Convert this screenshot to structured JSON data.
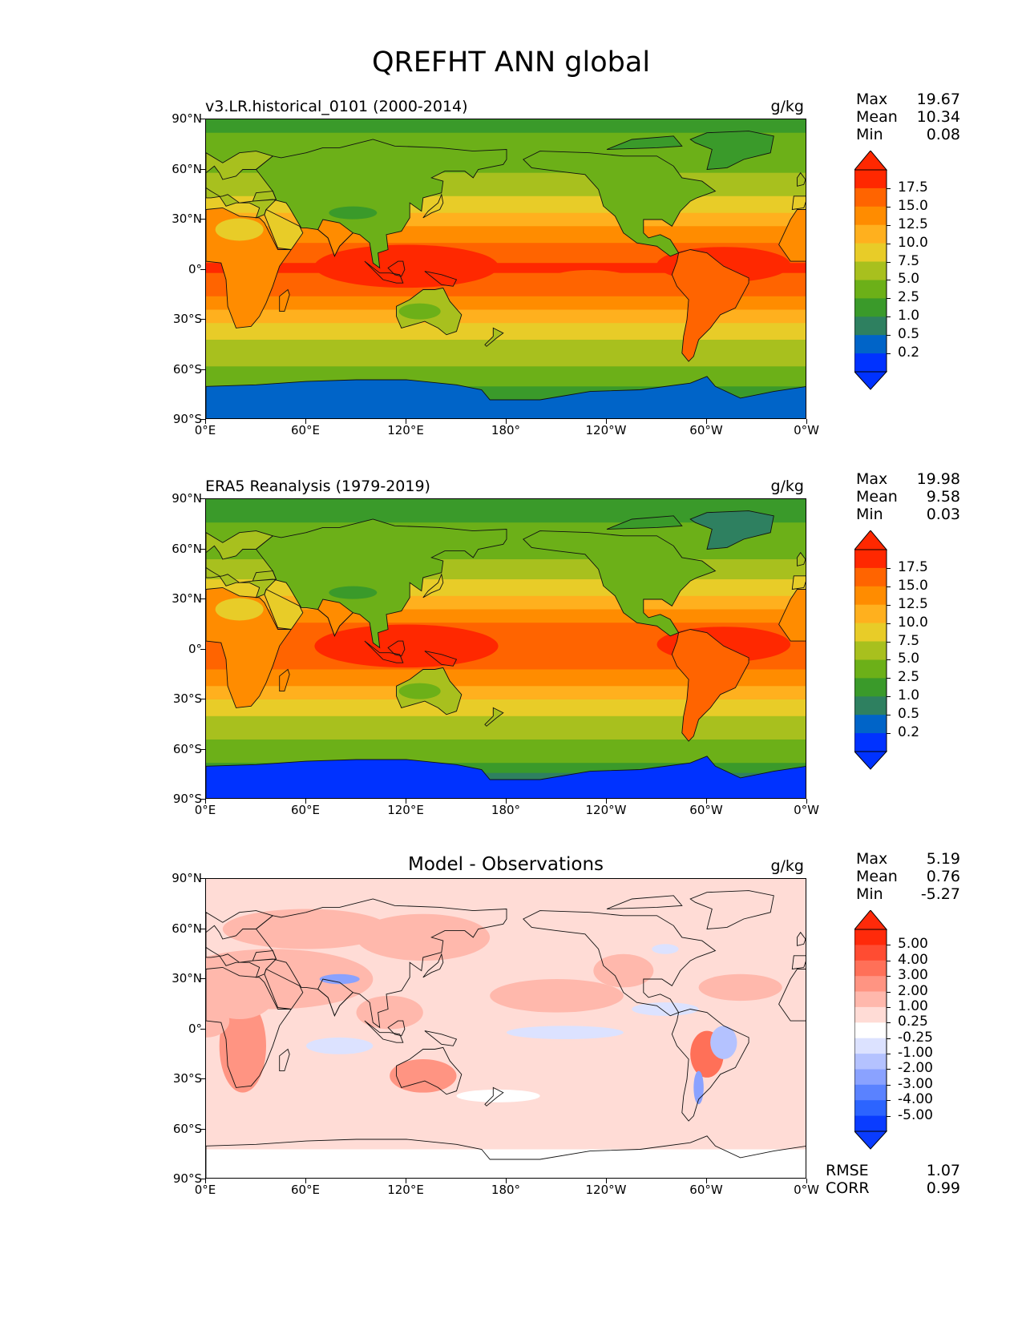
{
  "figure_title": "QREFHT ANN global",
  "colors": {
    "abs_levels": [
      "#0032ff",
      "#0064c8",
      "#2e8060",
      "#3a9a2a",
      "#6cb018",
      "#a8c01e",
      "#e8cc28",
      "#ffb01e",
      "#ff8c00",
      "#ff6400",
      "#ff2800"
    ],
    "diff_levels": [
      "#0a3cff",
      "#2c64ff",
      "#5a82ff",
      "#8aa2ff",
      "#b4c2ff",
      "#dce2ff",
      "#ffffff",
      "#ffdcd6",
      "#ffb8ac",
      "#ff9482",
      "#ff7058",
      "#ff4c32",
      "#ff2a0a"
    ],
    "coast": "#111111"
  },
  "ticks": {
    "lat": [
      "90°N",
      "60°N",
      "30°N",
      "0°",
      "30°S",
      "60°S",
      "90°S"
    ],
    "lon": [
      "0°E",
      "60°E",
      "120°E",
      "180°",
      "120°W",
      "60°W",
      "0°W"
    ]
  },
  "stat_labels": {
    "max": "Max",
    "mean": "Mean",
    "min": "Min"
  },
  "metric_labels": {
    "rmse": "RMSE",
    "corr": "CORR"
  },
  "panels": [
    {
      "title": "v3.LR.historical_0101 (2000-2014)",
      "units": "g/kg",
      "stats": {
        "max": "19.67",
        "mean": "10.34",
        "min": "0.08"
      },
      "colorbar_labels": [
        "17.5",
        "15.0",
        "12.5",
        "10.0",
        "7.5",
        "5.0",
        "2.5",
        "1.0",
        "0.5",
        "0.2"
      ]
    },
    {
      "title": "ERA5 Reanalysis (1979-2019)",
      "units": "g/kg",
      "stats": {
        "max": "19.98",
        "mean": "9.58",
        "min": "0.03"
      },
      "colorbar_labels": [
        "17.5",
        "15.0",
        "12.5",
        "10.0",
        "7.5",
        "5.0",
        "2.5",
        "1.0",
        "0.5",
        "0.2"
      ]
    },
    {
      "title": "Model - Observations",
      "units": "g/kg",
      "stats": {
        "max": "5.19",
        "mean": "0.76",
        "min": "-5.27"
      },
      "colorbar_labels": [
        "5.00",
        "4.00",
        "3.00",
        "2.00",
        "1.00",
        "0.25",
        "-0.25",
        "-1.00",
        "-2.00",
        "-3.00",
        "-4.00",
        "-5.00"
      ]
    }
  ],
  "metrics": {
    "rmse": "1.07",
    "corr": "0.99"
  },
  "chart_data": [
    {
      "type": "heatmap",
      "title": "v3.LR.historical_0101 (2000-2014)",
      "units": "g/kg",
      "xlim": [
        0,
        360
      ],
      "ylim": [
        -90,
        90
      ],
      "levels": [
        0.2,
        0.5,
        1.0,
        2.5,
        5.0,
        7.5,
        10.0,
        12.5,
        15.0,
        17.5
      ],
      "zonal_mean_profile": {
        "lat": [
          90,
          75,
          60,
          45,
          30,
          15,
          0,
          -15,
          -30,
          -45,
          -60,
          -75,
          -90
        ],
        "value": [
          2.0,
          3.0,
          4.5,
          7.0,
          11.0,
          15.5,
          18.0,
          15.0,
          10.5,
          7.0,
          4.5,
          1.5,
          0.3
        ]
      },
      "stats": {
        "max": 19.67,
        "mean": 10.34,
        "min": 0.08
      }
    },
    {
      "type": "heatmap",
      "title": "ERA5 Reanalysis (1979-2019)",
      "units": "g/kg",
      "xlim": [
        0,
        360
      ],
      "ylim": [
        -90,
        90
      ],
      "levels": [
        0.2,
        0.5,
        1.0,
        2.5,
        5.0,
        7.5,
        10.0,
        12.5,
        15.0,
        17.5
      ],
      "zonal_mean_profile": {
        "lat": [
          90,
          75,
          60,
          45,
          30,
          15,
          0,
          -15,
          -30,
          -45,
          -60,
          -75,
          -90
        ],
        "value": [
          1.5,
          2.5,
          4.0,
          6.5,
          10.5,
          15.0,
          17.5,
          14.5,
          10.0,
          6.5,
          4.0,
          0.8,
          0.1
        ]
      },
      "stats": {
        "max": 19.98,
        "mean": 9.58,
        "min": 0.03
      }
    },
    {
      "type": "heatmap",
      "title": "Model - Observations",
      "units": "g/kg",
      "xlim": [
        0,
        360
      ],
      "ylim": [
        -90,
        90
      ],
      "levels": [
        -5.0,
        -4.0,
        -3.0,
        -2.0,
        -1.0,
        -0.25,
        0.25,
        1.0,
        2.0,
        3.0,
        4.0,
        5.0
      ],
      "stats": {
        "max": 5.19,
        "mean": 0.76,
        "min": -5.27
      },
      "metrics": {
        "rmse": 1.07,
        "corr": 0.99
      }
    }
  ]
}
